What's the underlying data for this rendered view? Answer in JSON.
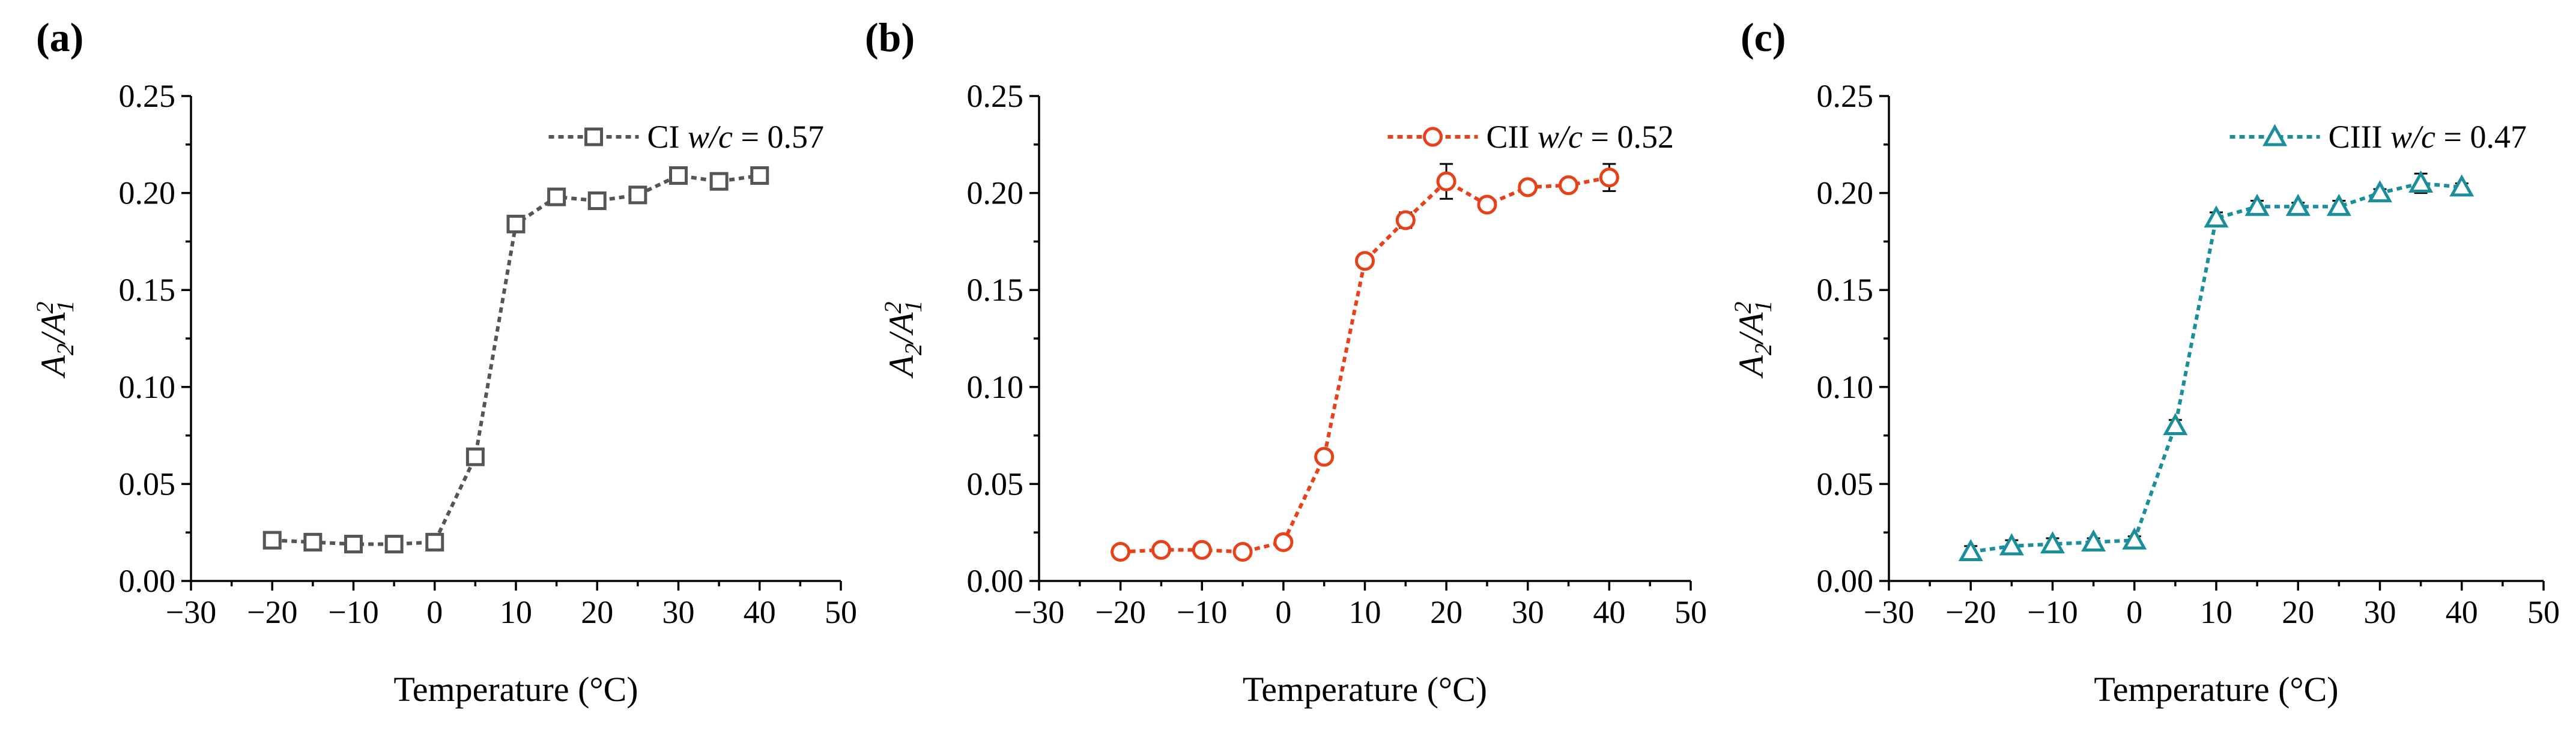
{
  "chart_data": [
    {
      "type": "line",
      "panel_label": "(a)",
      "series": [
        {
          "name": "CI",
          "legend_prefix": "CI",
          "legend_wc": "w/c",
          "legend_suffix": " = 0.57",
          "color": "#555555",
          "marker": "square",
          "x": [
            -20,
            -15,
            -10,
            -5,
            0,
            5,
            10,
            15,
            20,
            25,
            30,
            35,
            40
          ],
          "y": [
            0.021,
            0.02,
            0.019,
            0.019,
            0.02,
            0.064,
            0.184,
            0.198,
            0.196,
            0.199,
            0.209,
            0.206,
            0.209
          ],
          "err": [
            0.002,
            0.002,
            0.002,
            0.002,
            0.002,
            0.003,
            0.003,
            0.003,
            0.002,
            0.002,
            0.003,
            0.002,
            0.002
          ]
        }
      ],
      "xlabel": "Temperature (°C)",
      "ylabel_html": [
        "A",
        "2",
        "/A",
        "1",
        "2"
      ],
      "xlim": [
        -30,
        50
      ],
      "ylim": [
        0,
        0.25
      ],
      "xticks": [
        -30,
        -20,
        -10,
        0,
        10,
        20,
        30,
        40,
        50
      ],
      "xtick_labels": [
        "−30",
        "−20",
        "−10",
        "0",
        "10",
        "20",
        "30",
        "40",
        "50"
      ],
      "yticks": [
        0,
        0.05,
        0.1,
        0.15,
        0.2,
        0.25
      ],
      "ytick_labels": [
        "0.00",
        "0.05",
        "0.10",
        "0.15",
        "0.20",
        "0.25"
      ],
      "legend_position": "top-right",
      "grid": false
    },
    {
      "type": "line",
      "panel_label": "(b)",
      "series": [
        {
          "name": "CII",
          "legend_prefix": "CII",
          "legend_wc": "w/c",
          "legend_suffix": " = 0.52",
          "color": "#E8411A",
          "marker": "circle",
          "x": [
            -20,
            -15,
            -10,
            -5,
            0,
            5,
            10,
            15,
            20,
            25,
            30,
            35,
            40
          ],
          "y": [
            0.015,
            0.016,
            0.016,
            0.015,
            0.02,
            0.064,
            0.165,
            0.186,
            0.206,
            0.194,
            0.203,
            0.204,
            0.208
          ],
          "err": [
            0.002,
            0.002,
            0.002,
            0.002,
            0.003,
            0.003,
            0.003,
            0.004,
            0.009,
            0.002,
            0.002,
            0.002,
            0.007
          ]
        }
      ],
      "xlabel": "Temperature (°C)",
      "ylabel_html": [
        "A",
        "2",
        "/A",
        "1",
        "2"
      ],
      "xlim": [
        -30,
        50
      ],
      "ylim": [
        0,
        0.25
      ],
      "xticks": [
        -30,
        -20,
        -10,
        0,
        10,
        20,
        30,
        40,
        50
      ],
      "xtick_labels": [
        "−30",
        "−20",
        "−10",
        "0",
        "10",
        "20",
        "30",
        "40",
        "50"
      ],
      "yticks": [
        0,
        0.05,
        0.1,
        0.15,
        0.2,
        0.25
      ],
      "ytick_labels": [
        "0.00",
        "0.05",
        "0.10",
        "0.15",
        "0.20",
        "0.25"
      ],
      "legend_position": "top-right",
      "grid": false
    },
    {
      "type": "line",
      "panel_label": "(c)",
      "series": [
        {
          "name": "CIII",
          "legend_prefix": "CIII",
          "legend_wc": "w/c",
          "legend_suffix": " = 0.47",
          "color": "#1A8F9B",
          "marker": "triangle",
          "x": [
            -20,
            -15,
            -10,
            -5,
            0,
            5,
            10,
            15,
            20,
            25,
            30,
            35,
            40
          ],
          "y": [
            0.015,
            0.018,
            0.019,
            0.02,
            0.021,
            0.08,
            0.187,
            0.193,
            0.193,
            0.193,
            0.2,
            0.205,
            0.203
          ],
          "err": [
            0.003,
            0.003,
            0.003,
            0.002,
            0.002,
            0.003,
            0.003,
            0.003,
            0.002,
            0.003,
            0.002,
            0.005,
            0.002
          ]
        }
      ],
      "xlabel": "Temperature (°C)",
      "ylabel_html": [
        "A",
        "2",
        "/A",
        "1",
        "2"
      ],
      "xlim": [
        -30,
        50
      ],
      "ylim": [
        0,
        0.25
      ],
      "xticks": [
        -30,
        -20,
        -10,
        0,
        10,
        20,
        30,
        40,
        50
      ],
      "xtick_labels": [
        "−30",
        "−20",
        "−10",
        "0",
        "10",
        "20",
        "30",
        "40",
        "50"
      ],
      "yticks": [
        0,
        0.05,
        0.1,
        0.15,
        0.2,
        0.25
      ],
      "ytick_labels": [
        "0.00",
        "0.05",
        "0.10",
        "0.15",
        "0.20",
        "0.25"
      ],
      "legend_position": "top-right",
      "grid": false
    }
  ]
}
